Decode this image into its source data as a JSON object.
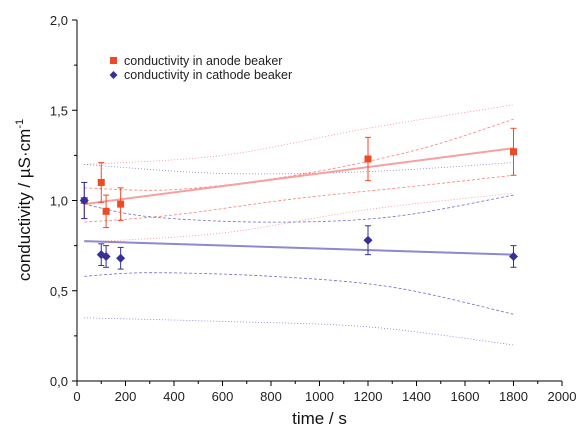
{
  "chart_data": {
    "type": "scatter",
    "xlabel": "time / s",
    "ylabel": "conductivity / µS·cm",
    "ylabel_sup": "-1",
    "xlim": [
      0,
      2000
    ],
    "ylim": [
      0.0,
      2.0
    ],
    "x_ticks": [
      0,
      200,
      400,
      600,
      800,
      1000,
      1200,
      1400,
      1600,
      1800,
      2000
    ],
    "x_tick_labels": [
      "0",
      "200",
      "400",
      "600",
      "800",
      "1000",
      "1200",
      "1400",
      "1600",
      "1800",
      "2000"
    ],
    "y_ticks": [
      0.0,
      0.5,
      1.0,
      1.5,
      2.0
    ],
    "y_tick_labels": [
      "0,0",
      "0,5",
      "1,0",
      "1,5",
      "2,0"
    ],
    "grid": false,
    "legend_position": "top-left",
    "series": [
      {
        "name": "conductivity in anode beaker",
        "marker": "square",
        "color": "#f04a24",
        "line_color": "#f7a0a0",
        "band_color": "#f46a6a",
        "points": [
          {
            "x": 30,
            "y": 1.0,
            "err": 0.1
          },
          {
            "x": 100,
            "y": 1.1,
            "err": 0.11
          },
          {
            "x": 120,
            "y": 0.94,
            "err": 0.09
          },
          {
            "x": 180,
            "y": 0.98,
            "err": 0.09
          },
          {
            "x": 1200,
            "y": 1.23,
            "err": 0.12
          },
          {
            "x": 1800,
            "y": 1.27,
            "err": 0.13
          }
        ],
        "fit": [
          [
            30,
            0.98
          ],
          [
            1800,
            1.29
          ]
        ],
        "conf_upper": [
          [
            30,
            1.07
          ],
          [
            400,
            1.06
          ],
          [
            900,
            1.14
          ],
          [
            1400,
            1.28
          ],
          [
            1800,
            1.45
          ]
        ],
        "conf_lower": [
          [
            30,
            0.88
          ],
          [
            400,
            0.92
          ],
          [
            900,
            1.01
          ],
          [
            1400,
            1.08
          ],
          [
            1800,
            1.14
          ]
        ],
        "pred_upper": [
          [
            30,
            1.2
          ],
          [
            600,
            1.25
          ],
          [
            1200,
            1.4
          ],
          [
            1800,
            1.53
          ]
        ],
        "pred_lower": [
          [
            30,
            0.77
          ],
          [
            600,
            0.82
          ],
          [
            1200,
            0.95
          ],
          [
            1800,
            1.04
          ]
        ]
      },
      {
        "name": "conductivity in cathode beaker",
        "marker": "diamond",
        "color": "#35309a",
        "line_color": "#8c88d2",
        "band_color": "#5a55c0",
        "points": [
          {
            "x": 30,
            "y": 1.0,
            "err": 0.1
          },
          {
            "x": 100,
            "y": 0.7,
            "err": 0.06
          },
          {
            "x": 120,
            "y": 0.69,
            "err": 0.06
          },
          {
            "x": 180,
            "y": 0.68,
            "err": 0.06
          },
          {
            "x": 1200,
            "y": 0.78,
            "err": 0.08
          },
          {
            "x": 1800,
            "y": 0.69,
            "err": 0.06
          }
        ],
        "fit": [
          [
            30,
            0.775
          ],
          [
            1800,
            0.7
          ]
        ],
        "conf_upper": [
          [
            30,
            0.98
          ],
          [
            300,
            0.91
          ],
          [
            800,
            0.88
          ],
          [
            1300,
            0.91
          ],
          [
            1800,
            1.03
          ]
        ],
        "conf_lower": [
          [
            30,
            0.58
          ],
          [
            300,
            0.6
          ],
          [
            800,
            0.58
          ],
          [
            1300,
            0.52
          ],
          [
            1800,
            0.37
          ]
        ],
        "pred_upper": [
          [
            30,
            1.2
          ],
          [
            600,
            1.15
          ],
          [
            1200,
            1.16
          ],
          [
            1800,
            1.21
          ]
        ],
        "pred_lower": [
          [
            30,
            0.35
          ],
          [
            600,
            0.33
          ],
          [
            1200,
            0.3
          ],
          [
            1800,
            0.2
          ]
        ]
      }
    ]
  }
}
